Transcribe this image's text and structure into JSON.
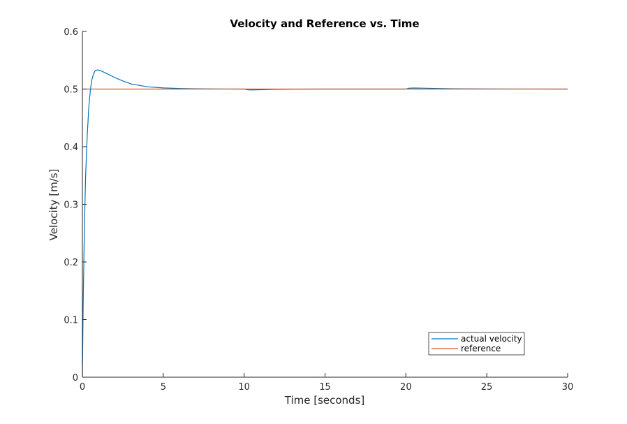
{
  "chart_data": {
    "type": "line",
    "title": "Velocity and Reference vs. Time",
    "xlabel": "Time [seconds]",
    "ylabel": "Velocity [m/s]",
    "xlim": [
      0,
      30
    ],
    "ylim": [
      0,
      0.6
    ],
    "xticks": [
      0,
      5,
      10,
      15,
      20,
      25,
      30
    ],
    "yticks": [
      0,
      0.1,
      0.2,
      0.3,
      0.4,
      0.5,
      0.6
    ],
    "xtick_labels": [
      "0",
      "5",
      "10",
      "15",
      "20",
      "25",
      "30"
    ],
    "ytick_labels": [
      "0",
      "0.1",
      "0.2",
      "0.3",
      "0.4",
      "0.5",
      "0.6"
    ],
    "grid": false,
    "legend_position": "bottom-right",
    "series": [
      {
        "name": "actual velocity",
        "color": "#0072bd",
        "x": [
          0,
          0.05,
          0.1,
          0.15,
          0.2,
          0.3,
          0.4,
          0.5,
          0.6,
          0.7,
          0.8,
          0.9,
          1.0,
          1.2,
          1.5,
          2.0,
          2.5,
          3.0,
          4.0,
          5.0,
          6.0,
          7.0,
          8.0,
          9.0,
          10.0,
          10.2,
          10.5,
          11.0,
          12.0,
          13.0,
          15.0,
          18.0,
          20.0,
          20.2,
          20.5,
          21.0,
          22.0,
          23.0,
          25.0,
          27.0,
          30.0
        ],
        "y": [
          0,
          0.13,
          0.22,
          0.29,
          0.35,
          0.42,
          0.47,
          0.5,
          0.518,
          0.527,
          0.532,
          0.533,
          0.533,
          0.531,
          0.527,
          0.52,
          0.514,
          0.509,
          0.504,
          0.502,
          0.501,
          0.5005,
          0.5002,
          0.5001,
          0.5,
          0.4988,
          0.4985,
          0.4988,
          0.4995,
          0.4998,
          0.5,
          0.5,
          0.5,
          0.5015,
          0.5018,
          0.5016,
          0.501,
          0.5005,
          0.5002,
          0.5001,
          0.5
        ]
      },
      {
        "name": "reference",
        "color": "#d95319",
        "x": [
          0,
          30
        ],
        "y": [
          0.5,
          0.5
        ]
      }
    ]
  }
}
